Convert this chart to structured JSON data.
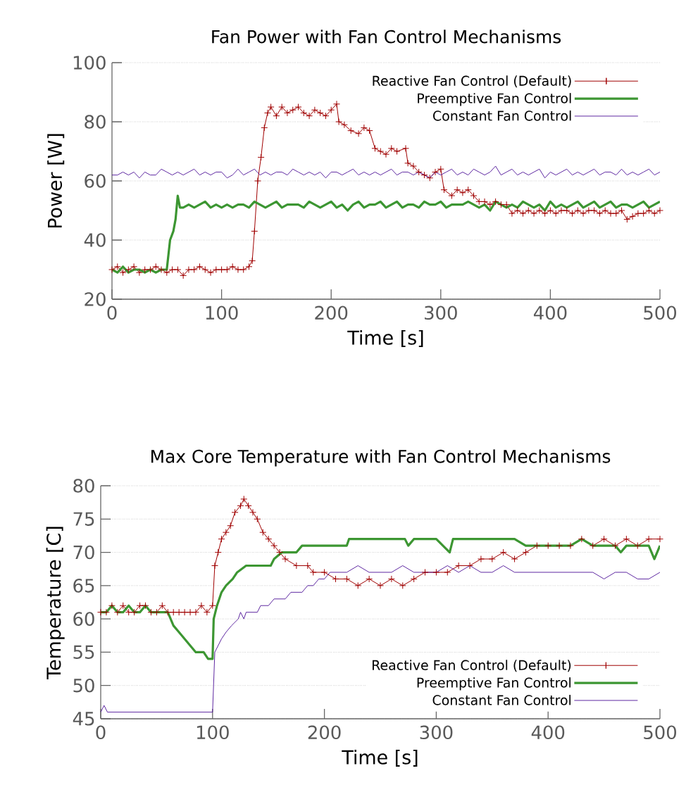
{
  "chart_data": [
    {
      "type": "line",
      "title": "Fan Power with Fan Control Mechanisms",
      "xlabel": "Time [s]",
      "ylabel": "Power [W]",
      "xlim": [
        0,
        500
      ],
      "ylim": [
        20,
        100
      ],
      "xticks": [
        0,
        100,
        200,
        300,
        400,
        500
      ],
      "yticks": [
        20,
        40,
        60,
        80,
        100
      ],
      "grid": "y",
      "legend": "top right",
      "series": [
        {
          "name": "Reactive Fan Control (Default)",
          "color": "#a00000",
          "marker": "cross",
          "x": [
            0,
            5,
            10,
            15,
            20,
            25,
            30,
            35,
            40,
            45,
            50,
            55,
            60,
            65,
            70,
            75,
            80,
            85,
            90,
            95,
            100,
            105,
            110,
            115,
            120,
            125,
            128,
            130,
            133,
            136,
            139,
            142,
            145,
            150,
            155,
            160,
            165,
            170,
            175,
            180,
            185,
            190,
            195,
            200,
            205,
            207,
            212,
            218,
            225,
            230,
            235,
            240,
            245,
            250,
            255,
            260,
            268,
            270,
            275,
            280,
            285,
            290,
            295,
            300,
            303,
            310,
            315,
            320,
            325,
            330,
            335,
            340,
            345,
            350,
            355,
            360,
            365,
            370,
            375,
            380,
            385,
            390,
            395,
            400,
            405,
            410,
            415,
            420,
            425,
            430,
            435,
            440,
            445,
            450,
            455,
            460,
            465,
            470,
            475,
            480,
            485,
            490,
            495,
            500
          ],
          "values": [
            30,
            31,
            29,
            30,
            31,
            29,
            30,
            30,
            31,
            30,
            29,
            30,
            30,
            28,
            30,
            30,
            31,
            30,
            29,
            30,
            30,
            30,
            31,
            30,
            30,
            31,
            33,
            43,
            60,
            68,
            78,
            83,
            85,
            82,
            85,
            83,
            84,
            85,
            83,
            82,
            84,
            83,
            82,
            84,
            86,
            80,
            79,
            77,
            76,
            78,
            77,
            71,
            70,
            69,
            71,
            70,
            71,
            66,
            65,
            63,
            62,
            61,
            63,
            64,
            57,
            55,
            57,
            56,
            57,
            55,
            53,
            53,
            52,
            53,
            52,
            52,
            49,
            50,
            49,
            50,
            49,
            50,
            49,
            50,
            49,
            50,
            50,
            49,
            50,
            49,
            50,
            50,
            49,
            50,
            49,
            49,
            50,
            47,
            48,
            49,
            49,
            50,
            49,
            50
          ]
        },
        {
          "name": "Preemptive Fan Control",
          "color": "#3c9632",
          "marker": "none",
          "x": [
            0,
            5,
            10,
            15,
            20,
            25,
            30,
            35,
            40,
            45,
            50,
            53,
            56,
            58,
            60,
            62,
            65,
            70,
            75,
            80,
            85,
            90,
            95,
            100,
            105,
            110,
            115,
            120,
            125,
            130,
            135,
            140,
            145,
            150,
            155,
            160,
            165,
            170,
            175,
            180,
            185,
            190,
            195,
            200,
            205,
            210,
            215,
            220,
            225,
            230,
            235,
            240,
            245,
            250,
            255,
            260,
            265,
            270,
            275,
            280,
            285,
            290,
            295,
            300,
            305,
            310,
            315,
            320,
            325,
            330,
            335,
            340,
            345,
            350,
            355,
            360,
            365,
            370,
            375,
            380,
            385,
            390,
            395,
            400,
            405,
            410,
            415,
            420,
            425,
            430,
            435,
            440,
            445,
            450,
            455,
            460,
            465,
            470,
            475,
            480,
            485,
            490,
            495,
            500
          ],
          "values": [
            30,
            29,
            31,
            29,
            30,
            30,
            29,
            30,
            29,
            30,
            30,
            40,
            43,
            47,
            55,
            51,
            51,
            52,
            51,
            52,
            53,
            51,
            52,
            51,
            52,
            51,
            52,
            52,
            51,
            53,
            52,
            51,
            52,
            53,
            51,
            52,
            52,
            52,
            51,
            53,
            52,
            51,
            52,
            53,
            51,
            52,
            50,
            52,
            53,
            51,
            52,
            52,
            53,
            51,
            52,
            53,
            51,
            52,
            52,
            51,
            53,
            52,
            52,
            53,
            51,
            52,
            52,
            52,
            53,
            52,
            51,
            52,
            50,
            53,
            52,
            51,
            52,
            51,
            53,
            52,
            51,
            52,
            50,
            53,
            51,
            52,
            51,
            52,
            53,
            51,
            52,
            53,
            51,
            52,
            53,
            51,
            52,
            52,
            51,
            52,
            53,
            51,
            52,
            53
          ]
        },
        {
          "name": "Constant Fan Control",
          "color": "#4b0f96",
          "marker": "none",
          "x": [
            0,
            5,
            10,
            15,
            20,
            25,
            30,
            35,
            40,
            45,
            50,
            55,
            60,
            65,
            70,
            75,
            80,
            85,
            90,
            95,
            100,
            105,
            110,
            115,
            120,
            125,
            130,
            135,
            140,
            145,
            150,
            155,
            160,
            165,
            170,
            175,
            180,
            185,
            190,
            195,
            200,
            205,
            210,
            215,
            220,
            225,
            230,
            235,
            240,
            245,
            250,
            255,
            260,
            265,
            270,
            275,
            280,
            285,
            290,
            295,
            300,
            305,
            310,
            315,
            320,
            325,
            330,
            335,
            340,
            345,
            350,
            355,
            360,
            365,
            370,
            375,
            380,
            385,
            390,
            395,
            400,
            405,
            410,
            415,
            420,
            425,
            430,
            435,
            440,
            445,
            450,
            455,
            460,
            465,
            470,
            475,
            480,
            485,
            490,
            495,
            500
          ],
          "values": [
            62,
            62,
            63,
            62,
            63,
            61,
            63,
            62,
            62,
            64,
            63,
            62,
            63,
            62,
            63,
            64,
            62,
            63,
            62,
            63,
            63,
            61,
            62,
            64,
            62,
            63,
            64,
            62,
            63,
            62,
            63,
            63,
            62,
            64,
            63,
            62,
            63,
            62,
            63,
            61,
            63,
            63,
            62,
            63,
            64,
            62,
            63,
            62,
            63,
            62,
            63,
            64,
            62,
            63,
            63,
            62,
            63,
            62,
            61,
            63,
            62,
            63,
            64,
            62,
            63,
            62,
            64,
            63,
            62,
            63,
            65,
            62,
            63,
            64,
            62,
            63,
            62,
            63,
            64,
            61,
            63,
            62,
            63,
            64,
            62,
            63,
            62,
            63,
            64,
            62,
            63,
            63,
            62,
            64,
            62,
            63,
            62,
            63,
            64,
            62,
            63
          ]
        }
      ]
    },
    {
      "type": "line",
      "title": "Max Core Temperature with Fan Control Mechanisms",
      "xlabel": "Time [s]",
      "ylabel": "Temperature [C]",
      "xlim": [
        0,
        500
      ],
      "ylim": [
        45,
        80
      ],
      "xticks": [
        0,
        100,
        200,
        300,
        400,
        500
      ],
      "yticks": [
        45,
        50,
        55,
        60,
        65,
        70,
        75,
        80
      ],
      "grid": "y",
      "legend": "bottom right",
      "series": [
        {
          "name": "Reactive Fan Control (Default)",
          "color": "#a00000",
          "marker": "cross",
          "x": [
            0,
            5,
            10,
            15,
            20,
            25,
            30,
            35,
            40,
            45,
            50,
            55,
            60,
            65,
            70,
            75,
            80,
            85,
            90,
            95,
            100,
            102,
            105,
            108,
            112,
            116,
            120,
            125,
            128,
            132,
            136,
            140,
            145,
            150,
            155,
            160,
            165,
            175,
            185,
            190,
            200,
            210,
            220,
            230,
            240,
            250,
            260,
            270,
            280,
            290,
            300,
            310,
            320,
            330,
            340,
            350,
            360,
            370,
            380,
            390,
            400,
            410,
            420,
            430,
            440,
            450,
            460,
            470,
            480,
            490,
            500
          ],
          "values": [
            61,
            61,
            62,
            61,
            62,
            61,
            61,
            62,
            62,
            61,
            61,
            62,
            61,
            61,
            61,
            61,
            61,
            61,
            62,
            61,
            62,
            68,
            70,
            72,
            73,
            74,
            76,
            77,
            78,
            77,
            76,
            75,
            73,
            72,
            71,
            70,
            69,
            68,
            68,
            67,
            67,
            66,
            66,
            65,
            66,
            65,
            66,
            65,
            66,
            67,
            67,
            67,
            68,
            68,
            69,
            69,
            70,
            69,
            70,
            71,
            71,
            71,
            71,
            72,
            71,
            72,
            71,
            72,
            71,
            72,
            72
          ]
        },
        {
          "name": "Preemptive Fan Control",
          "color": "#3c9632",
          "marker": "none",
          "x": [
            0,
            5,
            10,
            15,
            20,
            25,
            30,
            35,
            40,
            45,
            50,
            55,
            60,
            65,
            70,
            75,
            80,
            85,
            92,
            96,
            100,
            101,
            104,
            108,
            112,
            118,
            122,
            130,
            140,
            152,
            155,
            162,
            175,
            180,
            190,
            220,
            222,
            240,
            260,
            272,
            275,
            280,
            300,
            312,
            315,
            320,
            340,
            360,
            370,
            380,
            390,
            400,
            410,
            420,
            430,
            440,
            450,
            460,
            465,
            470,
            480,
            490,
            495,
            500
          ],
          "values": [
            61,
            61,
            62,
            61,
            61,
            62,
            61,
            61,
            62,
            61,
            61,
            61,
            61,
            59,
            58,
            57,
            56,
            55,
            55,
            54,
            54,
            60,
            62,
            64,
            65,
            66,
            67,
            68,
            68,
            68,
            69,
            70,
            70,
            71,
            71,
            71,
            72,
            72,
            72,
            72,
            71,
            72,
            72,
            70,
            72,
            72,
            72,
            72,
            72,
            71,
            71,
            71,
            71,
            71,
            72,
            71,
            71,
            71,
            70,
            71,
            71,
            71,
            69,
            71
          ]
        },
        {
          "name": "Constant Fan Control",
          "color": "#4b0f96",
          "marker": "none",
          "x": [
            0,
            3,
            6,
            100,
            102,
            105,
            108,
            112,
            117,
            123,
            125,
            128,
            130,
            140,
            143,
            150,
            155,
            165,
            170,
            180,
            185,
            190,
            195,
            200,
            205,
            210,
            220,
            230,
            240,
            250,
            260,
            270,
            280,
            290,
            300,
            310,
            320,
            330,
            340,
            350,
            360,
            370,
            380,
            390,
            400,
            410,
            420,
            430,
            440,
            450,
            460,
            470,
            480,
            490,
            500
          ],
          "values": [
            46,
            47,
            46,
            46,
            55,
            56,
            57,
            58,
            59,
            60,
            61,
            60,
            61,
            61,
            62,
            62,
            63,
            63,
            64,
            64,
            65,
            65,
            66,
            66,
            67,
            67,
            67,
            68,
            67,
            67,
            67,
            68,
            67,
            67,
            67,
            68,
            67,
            68,
            67,
            67,
            68,
            67,
            67,
            67,
            67,
            67,
            67,
            67,
            67,
            66,
            67,
            67,
            66,
            66,
            67
          ]
        }
      ]
    }
  ]
}
